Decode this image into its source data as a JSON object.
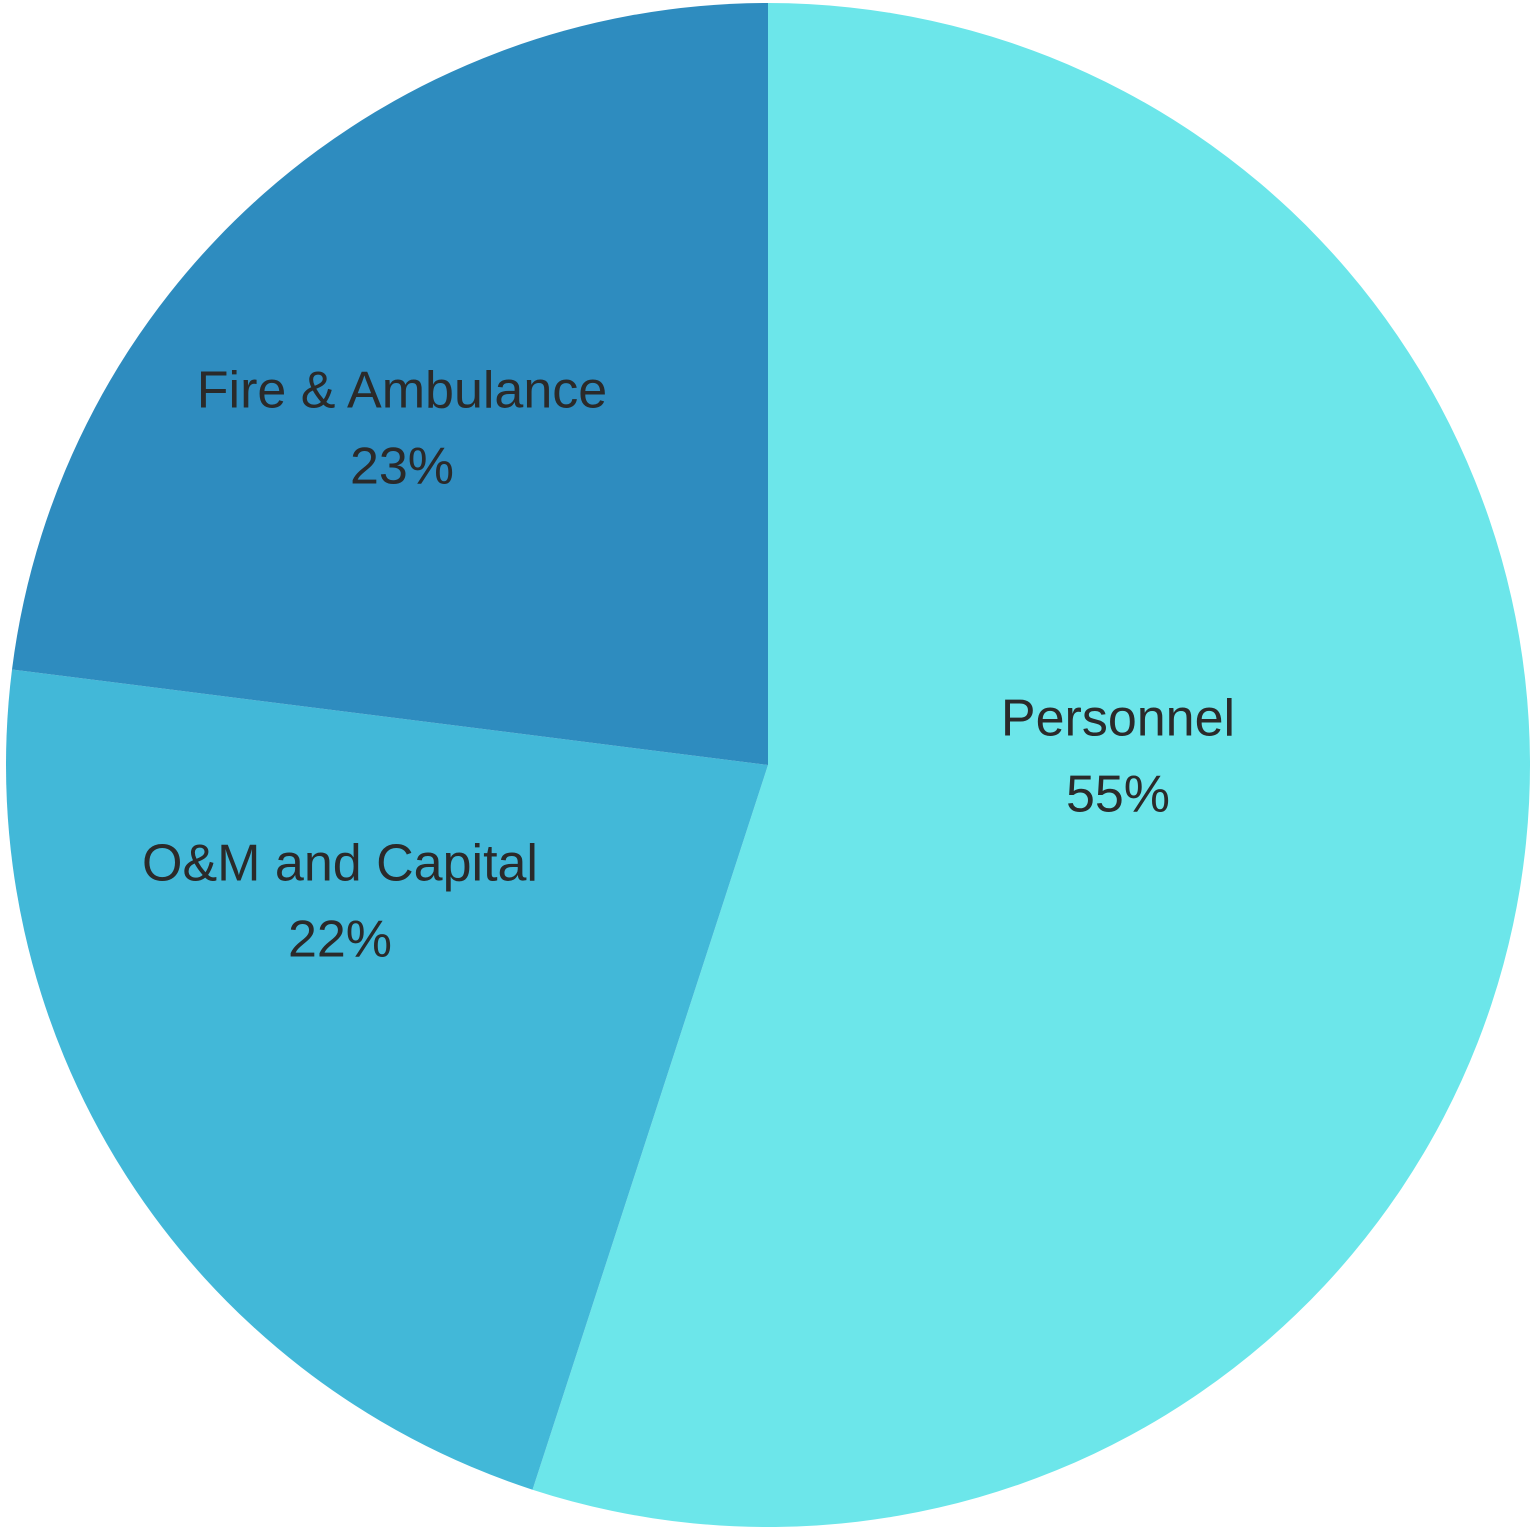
{
  "chart_data": {
    "type": "pie",
    "categories": [
      "Personnel",
      "O&M and Capital",
      "Fire & Ambulance"
    ],
    "values": [
      55,
      22,
      23
    ],
    "value_labels": [
      "55%",
      "22%",
      "23%"
    ],
    "colors": [
      "#6ce6ea",
      "#42b8d8",
      "#2e8cbf"
    ]
  }
}
